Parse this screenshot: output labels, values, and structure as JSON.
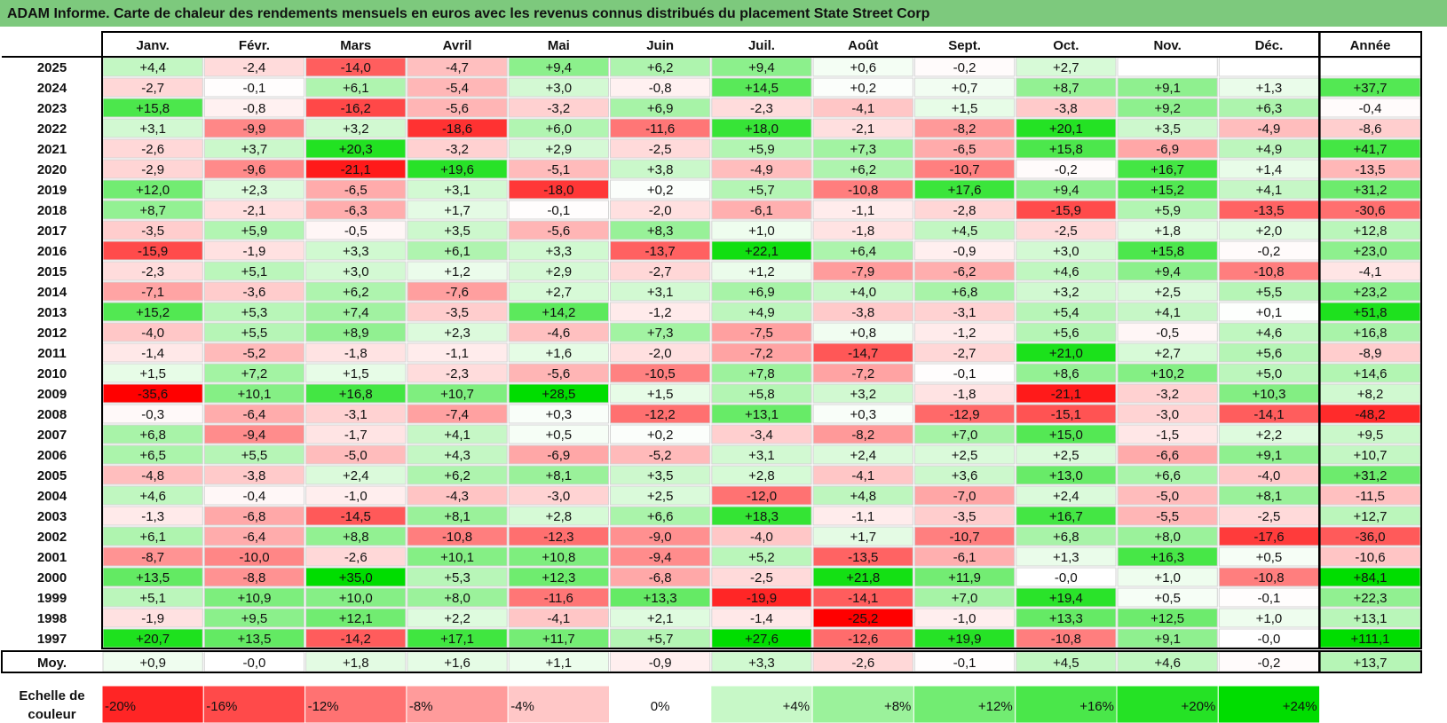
{
  "title": "ADAM Informe. Carte de chaleur des rendements mensuels en euros avec les revenus connus distribués du placement State Street Corp",
  "chart_data": {
    "type": "heatmap",
    "months": [
      "Janv.",
      "Févr.",
      "Mars",
      "Avril",
      "Mai",
      "Juin",
      "Juil.",
      "Août",
      "Sept.",
      "Oct.",
      "Nov.",
      "Déc."
    ],
    "year_column_header": "Année",
    "rows": [
      {
        "year": "2025",
        "values": [
          "+4,4",
          "-2,4",
          "-14,0",
          "-4,7",
          "+9,4",
          "+6,2",
          "+9,4",
          "+0,6",
          "-0,2",
          "+2,7",
          "",
          ""
        ],
        "annual": ""
      },
      {
        "year": "2024",
        "values": [
          "-2,7",
          "-0,1",
          "+6,1",
          "-5,4",
          "+3,0",
          "-0,8",
          "+14,5",
          "+0,2",
          "+0,7",
          "+8,7",
          "+9,1",
          "+1,3"
        ],
        "annual": "+37,7"
      },
      {
        "year": "2023",
        "values": [
          "+15,8",
          "-0,8",
          "-16,2",
          "-5,6",
          "-3,2",
          "+6,9",
          "-2,3",
          "-4,1",
          "+1,5",
          "-3,8",
          "+9,2",
          "+6,3"
        ],
        "annual": "-0,4"
      },
      {
        "year": "2022",
        "values": [
          "+3,1",
          "-9,9",
          "+3,2",
          "-18,6",
          "+6,0",
          "-11,6",
          "+18,0",
          "-2,1",
          "-8,2",
          "+20,1",
          "+3,5",
          "-4,9"
        ],
        "annual": "-8,6"
      },
      {
        "year": "2021",
        "values": [
          "-2,6",
          "+3,7",
          "+20,3",
          "-3,2",
          "+2,9",
          "-2,5",
          "+5,9",
          "+7,3",
          "-6,5",
          "+15,8",
          "-6,9",
          "+4,9"
        ],
        "annual": "+41,7"
      },
      {
        "year": "2020",
        "values": [
          "-2,9",
          "-9,6",
          "-21,1",
          "+19,6",
          "-5,1",
          "+3,8",
          "-4,9",
          "+6,2",
          "-10,7",
          "-0,2",
          "+16,7",
          "+1,4"
        ],
        "annual": "-13,5"
      },
      {
        "year": "2019",
        "values": [
          "+12,0",
          "+2,3",
          "-6,5",
          "+3,1",
          "-18,0",
          "+0,2",
          "+5,7",
          "-10,8",
          "+17,6",
          "+9,4",
          "+15,2",
          "+4,1"
        ],
        "annual": "+31,2"
      },
      {
        "year": "2018",
        "values": [
          "+8,7",
          "-2,1",
          "-6,3",
          "+1,7",
          "-0,1",
          "-2,0",
          "-6,1",
          "-1,1",
          "-2,8",
          "-15,9",
          "+5,9",
          "-13,5"
        ],
        "annual": "-30,6"
      },
      {
        "year": "2017",
        "values": [
          "-3,5",
          "+5,9",
          "-0,5",
          "+3,5",
          "-5,6",
          "+8,3",
          "+1,0",
          "-1,8",
          "+4,5",
          "-2,5",
          "+1,8",
          "+2,0"
        ],
        "annual": "+12,8"
      },
      {
        "year": "2016",
        "values": [
          "-15,9",
          "-1,9",
          "+3,3",
          "+6,1",
          "+3,3",
          "-13,7",
          "+22,1",
          "+6,4",
          "-0,9",
          "+3,0",
          "+15,8",
          "-0,2"
        ],
        "annual": "+23,0"
      },
      {
        "year": "2015",
        "values": [
          "-2,3",
          "+5,1",
          "+3,0",
          "+1,2",
          "+2,9",
          "-2,7",
          "+1,2",
          "-7,9",
          "-6,2",
          "+4,6",
          "+9,4",
          "-10,8"
        ],
        "annual": "-4,1"
      },
      {
        "year": "2014",
        "values": [
          "-7,1",
          "-3,6",
          "+6,2",
          "-7,6",
          "+2,7",
          "+3,1",
          "+6,9",
          "+4,0",
          "+6,8",
          "+3,2",
          "+2,5",
          "+5,5"
        ],
        "annual": "+23,2"
      },
      {
        "year": "2013",
        "values": [
          "+15,2",
          "+5,3",
          "+7,4",
          "-3,5",
          "+14,2",
          "-1,2",
          "+4,9",
          "-3,8",
          "-3,1",
          "+5,4",
          "+4,1",
          "+0,1"
        ],
        "annual": "+51,8"
      },
      {
        "year": "2012",
        "values": [
          "-4,0",
          "+5,5",
          "+8,9",
          "+2,3",
          "-4,6",
          "+7,3",
          "-7,5",
          "+0,8",
          "-1,2",
          "+5,6",
          "-0,5",
          "+4,6"
        ],
        "annual": "+16,8"
      },
      {
        "year": "2011",
        "values": [
          "-1,4",
          "-5,2",
          "-1,8",
          "-1,1",
          "+1,6",
          "-2,0",
          "-7,2",
          "-14,7",
          "-2,7",
          "+21,0",
          "+2,7",
          "+5,6"
        ],
        "annual": "-8,9"
      },
      {
        "year": "2010",
        "values": [
          "+1,5",
          "+7,2",
          "+1,5",
          "-2,3",
          "-5,6",
          "-10,5",
          "+7,8",
          "-7,2",
          "-0,1",
          "+8,6",
          "+10,2",
          "+5,0"
        ],
        "annual": "+14,6"
      },
      {
        "year": "2009",
        "values": [
          "-35,6",
          "+10,1",
          "+16,8",
          "+10,7",
          "+28,5",
          "+1,5",
          "+5,8",
          "+3,2",
          "-1,8",
          "-21,1",
          "-3,2",
          "+10,3"
        ],
        "annual": "+8,2"
      },
      {
        "year": "2008",
        "values": [
          "-0,3",
          "-6,4",
          "-3,1",
          "-7,4",
          "+0,3",
          "-12,2",
          "+13,1",
          "+0,3",
          "-12,9",
          "-15,1",
          "-3,0",
          "-14,1"
        ],
        "annual": "-48,2"
      },
      {
        "year": "2007",
        "values": [
          "+6,8",
          "-9,4",
          "-1,7",
          "+4,1",
          "+0,5",
          "+0,2",
          "-3,4",
          "-8,2",
          "+7,0",
          "+15,0",
          "-1,5",
          "+2,2"
        ],
        "annual": "+9,5"
      },
      {
        "year": "2006",
        "values": [
          "+6,5",
          "+5,5",
          "-5,0",
          "+4,3",
          "-6,9",
          "-5,2",
          "+3,1",
          "+2,4",
          "+2,5",
          "+2,5",
          "-6,6",
          "+9,1"
        ],
        "annual": "+10,7"
      },
      {
        "year": "2005",
        "values": [
          "-4,8",
          "-3,8",
          "+2,4",
          "+6,2",
          "+8,1",
          "+3,5",
          "+2,8",
          "-4,1",
          "+3,6",
          "+13,0",
          "+6,6",
          "-4,0"
        ],
        "annual": "+31,2"
      },
      {
        "year": "2004",
        "values": [
          "+4,6",
          "-0,4",
          "-1,0",
          "-4,3",
          "-3,0",
          "+2,5",
          "-12,0",
          "+4,8",
          "-7,0",
          "+2,4",
          "-5,0",
          "+8,1"
        ],
        "annual": "-11,5"
      },
      {
        "year": "2003",
        "values": [
          "-1,3",
          "-6,8",
          "-14,5",
          "+8,1",
          "+2,8",
          "+6,6",
          "+18,3",
          "-1,1",
          "-3,5",
          "+16,7",
          "-5,5",
          "-2,5"
        ],
        "annual": "+12,7"
      },
      {
        "year": "2002",
        "values": [
          "+6,1",
          "-6,4",
          "+8,8",
          "-10,8",
          "-12,3",
          "-9,0",
          "-4,0",
          "+1,7",
          "-10,7",
          "+6,8",
          "+8,0",
          "-17,6"
        ],
        "annual": "-36,0"
      },
      {
        "year": "2001",
        "values": [
          "-8,7",
          "-10,0",
          "-2,6",
          "+10,1",
          "+10,8",
          "-9,4",
          "+5,2",
          "-13,5",
          "-6,1",
          "+1,3",
          "+16,3",
          "+0,5"
        ],
        "annual": "-10,6"
      },
      {
        "year": "2000",
        "values": [
          "+13,5",
          "-8,8",
          "+35,0",
          "+5,3",
          "+12,3",
          "-6,8",
          "-2,5",
          "+21,8",
          "+11,9",
          "-0,0",
          "+1,0",
          "-10,8"
        ],
        "annual": "+84,1"
      },
      {
        "year": "1999",
        "values": [
          "+5,1",
          "+10,9",
          "+10,0",
          "+8,0",
          "-11,6",
          "+13,3",
          "-19,9",
          "-14,1",
          "+7,0",
          "+19,4",
          "+0,5",
          "-0,1"
        ],
        "annual": "+22,3"
      },
      {
        "year": "1998",
        "values": [
          "-1,9",
          "+9,5",
          "+12,1",
          "+2,2",
          "-4,1",
          "+2,1",
          "-1,4",
          "-25,2",
          "-1,0",
          "+13,3",
          "+12,5",
          "+1,0"
        ],
        "annual": "+13,1"
      },
      {
        "year": "1997",
        "values": [
          "+20,7",
          "+13,5",
          "-14,2",
          "+17,1",
          "+11,7",
          "+5,7",
          "+27,6",
          "-12,6",
          "+19,9",
          "-10,8",
          "+9,1",
          "-0,0"
        ],
        "annual": "+111,1"
      }
    ],
    "average_row": {
      "label": "Moy.",
      "values": [
        "+0,9",
        "-0,0",
        "+1,8",
        "+1,6",
        "+1,1",
        "-0,9",
        "+3,3",
        "-2,6",
        "-0,1",
        "+4,5",
        "+4,6",
        "-0,2"
      ],
      "annual": "+13,7"
    },
    "color_scale": {
      "label": "Echelle de couleur",
      "stops": [
        "-20%",
        "-16%",
        "-12%",
        "-8%",
        "-4%",
        "0%",
        "+4%",
        "+8%",
        "+12%",
        "+16%",
        "+20%",
        "+24%"
      ],
      "negative_color": "#ff0000",
      "neutral_color": "#ffffff",
      "positive_color": "#00dd00"
    },
    "colors": {
      "title_background": "#7dc97d"
    }
  }
}
